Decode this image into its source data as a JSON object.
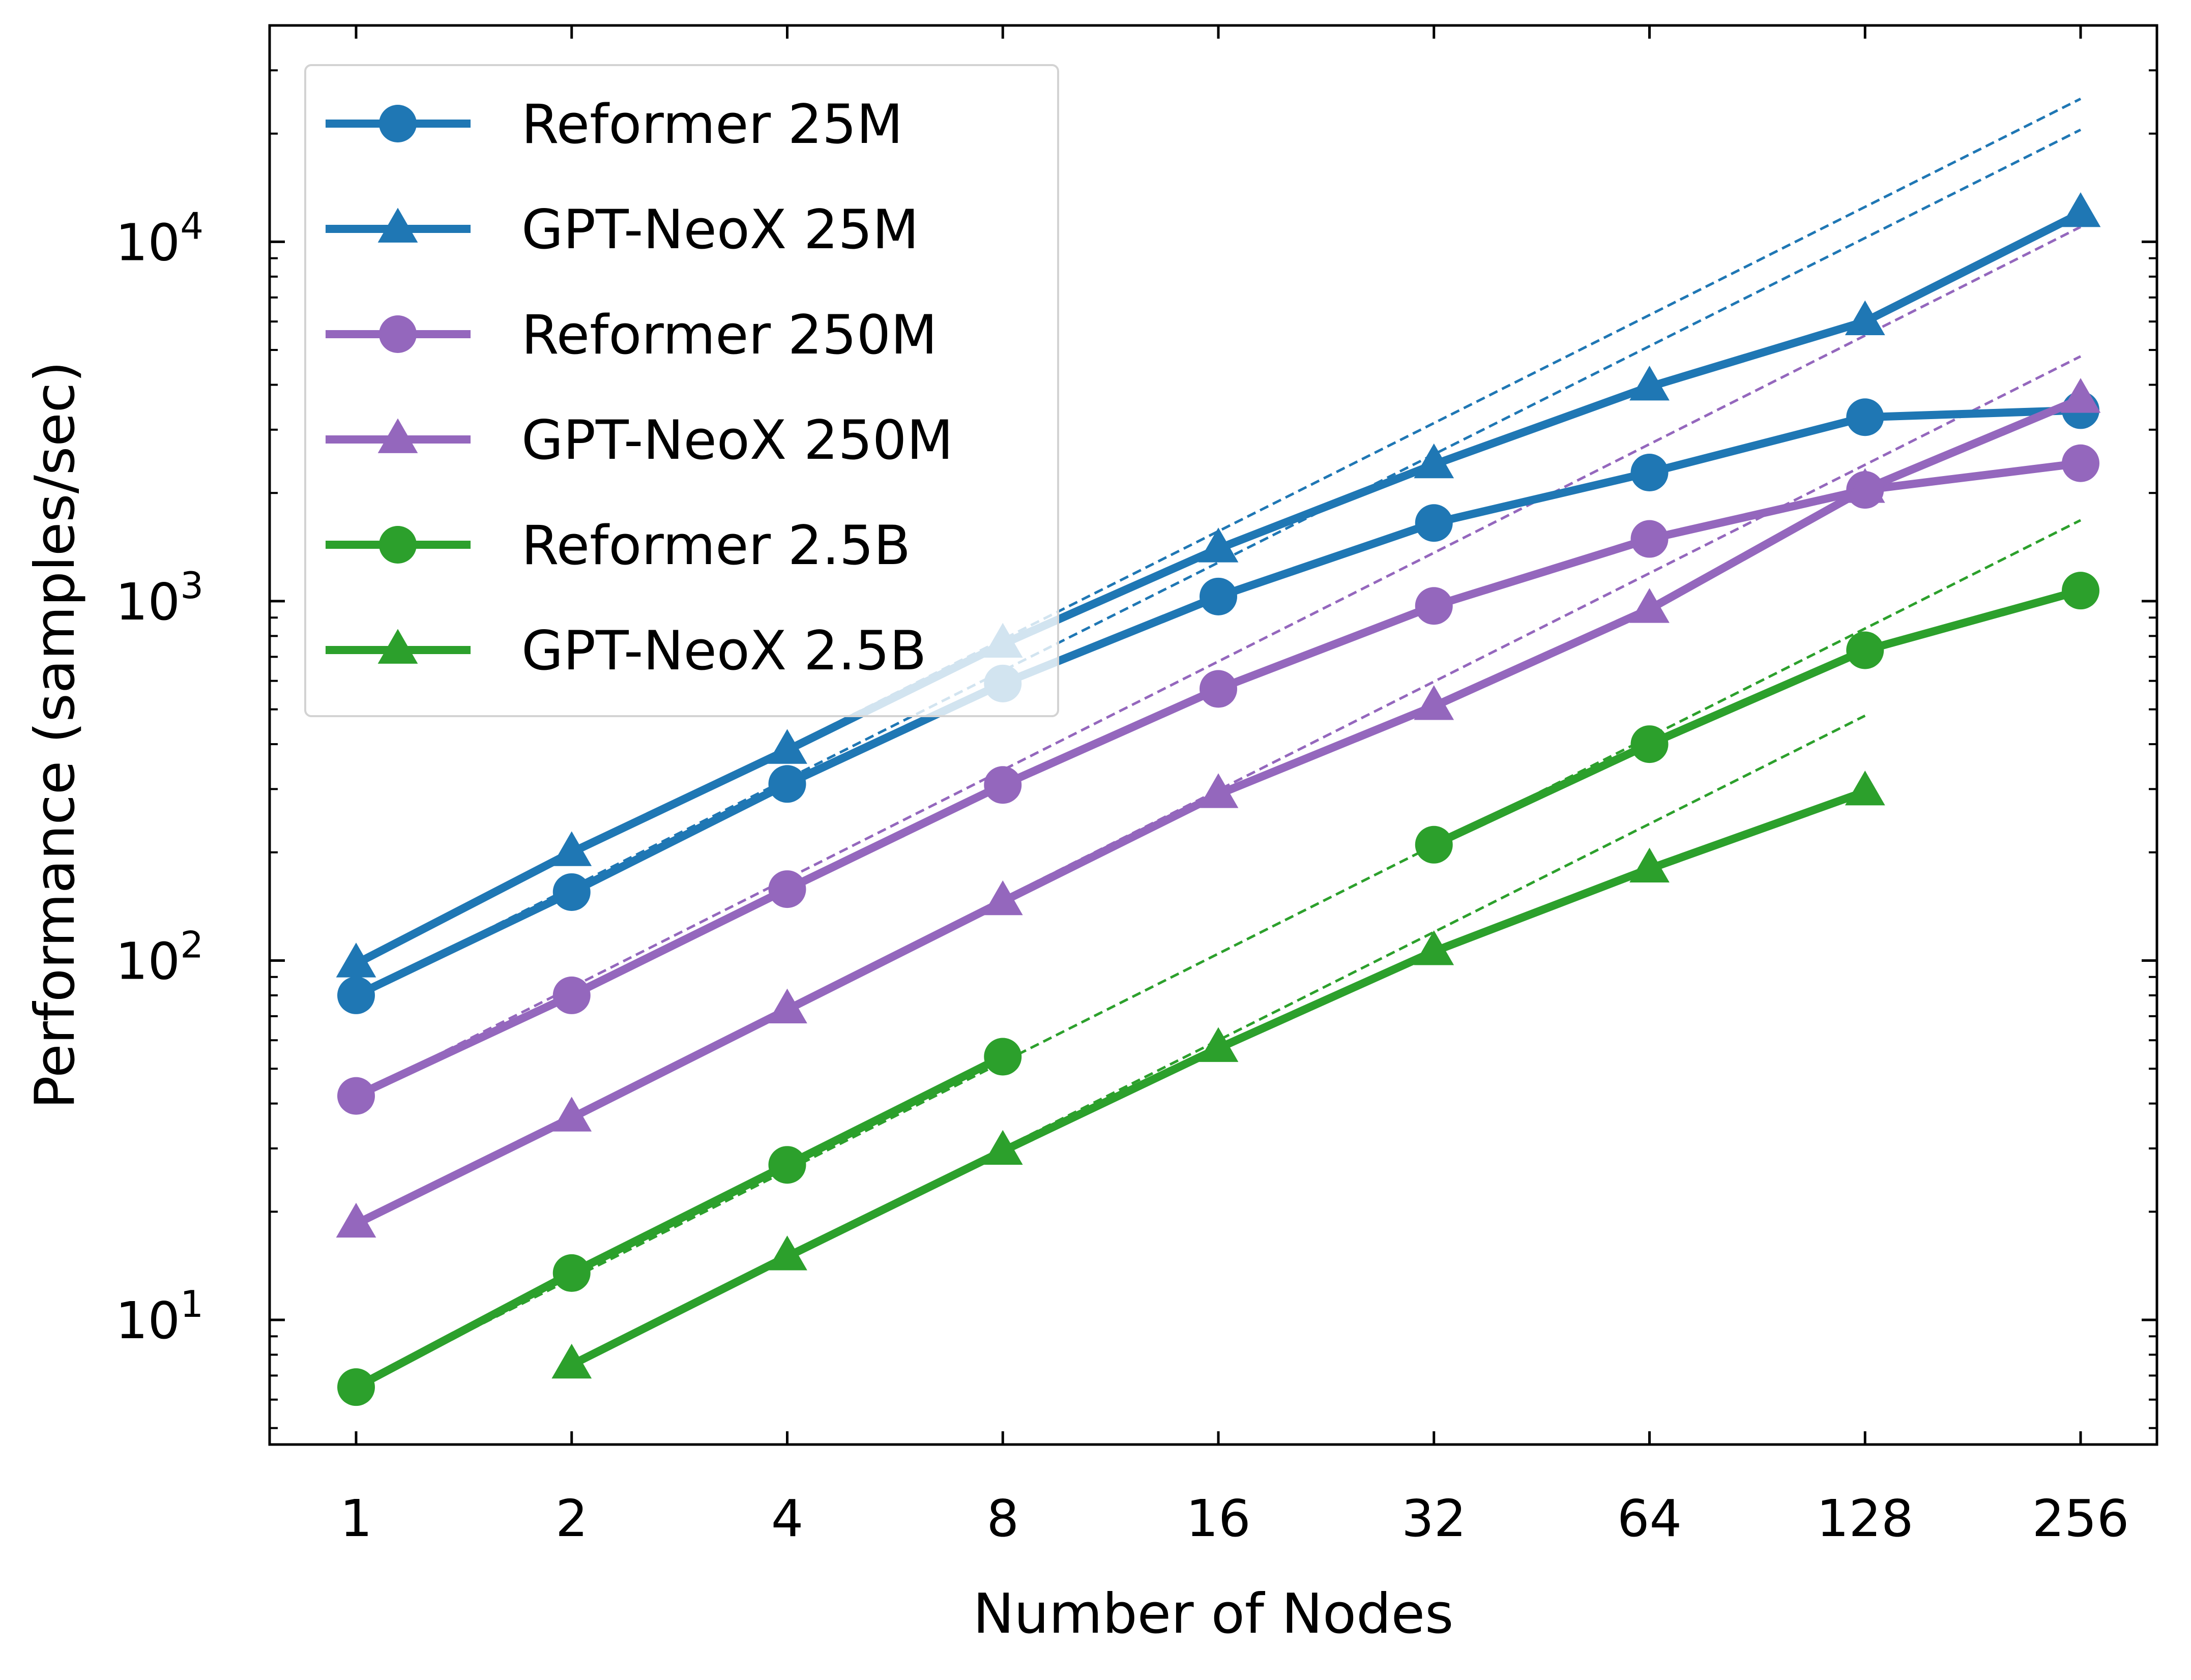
{
  "chart_data": {
    "type": "line",
    "title": "",
    "xlabel": "Number of Nodes",
    "ylabel": "Performance (samples/sec)",
    "x_scale": "log2",
    "y_scale": "log10",
    "x": [
      1,
      2,
      4,
      8,
      16,
      32,
      64,
      128,
      256
    ],
    "x_tick_labels": [
      "1",
      "2",
      "4",
      "8",
      "16",
      "32",
      "64",
      "128",
      "256"
    ],
    "y_ticks": [
      {
        "value": 10,
        "base": "10",
        "exp": "1"
      },
      {
        "value": 100,
        "base": "10",
        "exp": "2"
      },
      {
        "value": 1000,
        "base": "10",
        "exp": "3"
      },
      {
        "value": 10000,
        "base": "10",
        "exp": "4"
      }
    ],
    "ylim": [
      4.5,
      40000
    ],
    "grid": false,
    "legend_position": "top-left",
    "series": [
      {
        "name": "Reformer 25M",
        "color": "#1f77b4",
        "marker": "circle",
        "values": [
          80,
          155,
          310,
          590,
          1030,
          1650,
          2280,
          3250,
          3400
        ]
      },
      {
        "name": "GPT-NeoX 25M",
        "color": "#1f77b4",
        "marker": "triangle",
        "values": [
          98,
          200,
          385,
          760,
          1400,
          2400,
          3950,
          6000,
          12000
        ]
      },
      {
        "name": "Reformer 250M",
        "color": "#9467bd",
        "marker": "circle",
        "values": [
          42,
          80,
          158,
          308,
          570,
          970,
          1490,
          2040,
          2420
        ]
      },
      {
        "name": "GPT-NeoX 250M",
        "color": "#9467bd",
        "marker": "triangle",
        "values": [
          18.5,
          36.5,
          73,
          146,
          290,
          510,
          950,
          2050,
          3650
        ]
      },
      {
        "name": "Reformer 2.5B",
        "color": "#2ca02c",
        "marker": "circle",
        "values": [
          6.5,
          13.5,
          27,
          54,
          null,
          210,
          400,
          730,
          1070
        ]
      },
      {
        "name": "GPT-NeoX 2.5B",
        "color": "#2ca02c",
        "marker": "triangle",
        "values": [
          null,
          7.5,
          15,
          29.5,
          57,
          106,
          180,
          295,
          null
        ]
      }
    ],
    "ideal_scaling_lines": [
      {
        "color": "#1f77b4",
        "x": [
          1,
          256
        ],
        "values": [
          98,
          25000
        ]
      },
      {
        "color": "#1f77b4",
        "x": [
          1,
          256
        ],
        "values": [
          80,
          20500
        ]
      },
      {
        "color": "#9467bd",
        "x": [
          1,
          256
        ],
        "values": [
          42,
          11000
        ]
      },
      {
        "color": "#9467bd",
        "x": [
          1,
          256
        ],
        "values": [
          18.5,
          4800
        ]
      },
      {
        "color": "#2ca02c",
        "x": [
          1,
          256
        ],
        "values": [
          6.5,
          1680
        ]
      },
      {
        "color": "#2ca02c",
        "x": [
          2,
          128
        ],
        "values": [
          7.5,
          480
        ]
      }
    ]
  }
}
